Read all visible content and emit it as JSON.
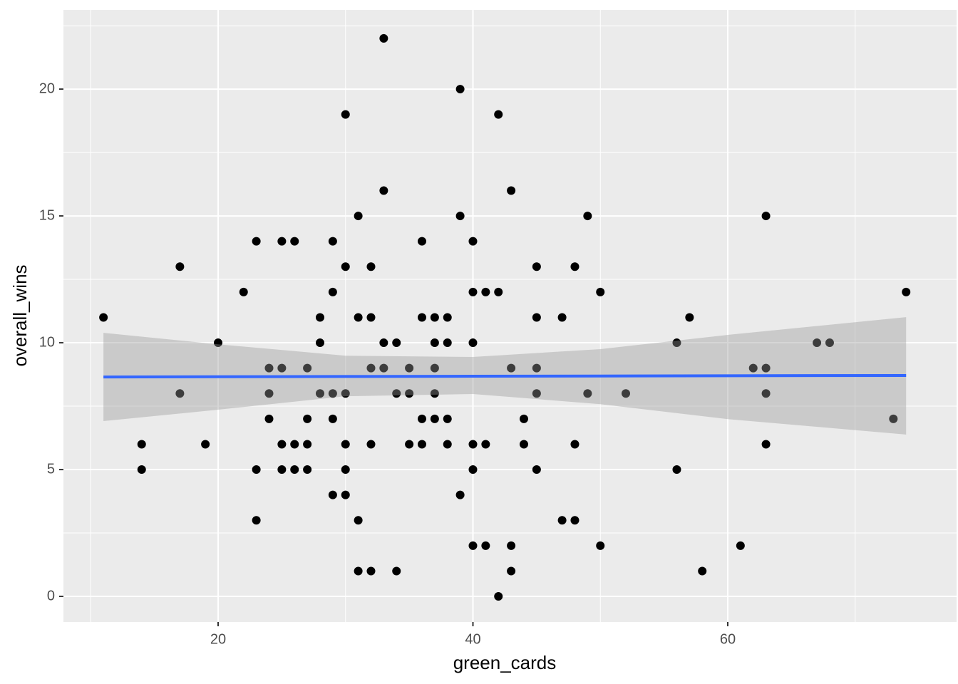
{
  "chart_data": {
    "type": "scatter",
    "x_label": "green_cards",
    "y_label": "overall_wins",
    "x": [
      11,
      14,
      14,
      17,
      17,
      19,
      20,
      22,
      23,
      23,
      23,
      24,
      24,
      24,
      25,
      25,
      25,
      25,
      26,
      26,
      26,
      27,
      27,
      27,
      27,
      28,
      28,
      28,
      29,
      29,
      29,
      29,
      29,
      30,
      30,
      30,
      30,
      30,
      30,
      31,
      31,
      31,
      31,
      32,
      32,
      32,
      32,
      32,
      33,
      33,
      33,
      33,
      34,
      34,
      34,
      35,
      35,
      35,
      36,
      36,
      36,
      36,
      37,
      37,
      37,
      37,
      37,
      38,
      38,
      38,
      38,
      39,
      39,
      39,
      40,
      40,
      40,
      40,
      40,
      40,
      41,
      41,
      41,
      42,
      42,
      42,
      43,
      43,
      43,
      43,
      44,
      44,
      45,
      45,
      45,
      45,
      45,
      47,
      47,
      48,
      48,
      48,
      49,
      49,
      50,
      50,
      52,
      56,
      56,
      57,
      58,
      61,
      62,
      63,
      63,
      63,
      63,
      67,
      68,
      73,
      74
    ],
    "values": [
      11,
      6,
      5,
      13,
      8,
      6,
      10,
      12,
      14,
      5,
      3,
      9,
      8,
      7,
      14,
      9,
      6,
      5,
      14,
      6,
      5,
      9,
      7,
      6,
      5,
      11,
      10,
      8,
      14,
      12,
      8,
      7,
      4,
      19,
      13,
      8,
      6,
      5,
      4,
      15,
      11,
      3,
      1,
      13,
      11,
      9,
      6,
      1,
      22,
      16,
      10,
      9,
      10,
      8,
      1,
      9,
      8,
      6,
      14,
      11,
      7,
      6,
      11,
      10,
      9,
      8,
      7,
      11,
      10,
      7,
      6,
      20,
      15,
      4,
      14,
      12,
      10,
      6,
      5,
      2,
      12,
      6,
      2,
      19,
      12,
      0,
      16,
      9,
      2,
      1,
      7,
      6,
      13,
      11,
      9,
      8,
      5,
      11,
      3,
      13,
      6,
      3,
      15,
      8,
      12,
      2,
      8,
      10,
      5,
      11,
      1,
      2,
      9,
      15,
      9,
      8,
      6,
      10,
      10,
      7,
      12
    ],
    "color": "#000000",
    "fit": {
      "color": "#3366ff",
      "band_color": "#999999",
      "x": [
        11,
        20,
        30,
        40,
        50,
        60,
        74
      ],
      "values": [
        8.65,
        8.66,
        8.67,
        8.68,
        8.69,
        8.7,
        8.71
      ],
      "lower": [
        6.91,
        7.36,
        7.89,
        7.98,
        7.58,
        6.99,
        6.38
      ],
      "upper": [
        10.39,
        9.94,
        9.49,
        9.44,
        9.75,
        10.31,
        11.01
      ]
    },
    "xlim": [
      7.86,
      77.96
    ],
    "xticks": [
      20,
      40,
      60
    ],
    "xminor": [
      10,
      30,
      50,
      70
    ],
    "ylim": [
      -1.01,
      23.12
    ],
    "yticks": [
      0,
      5,
      10,
      15,
      20
    ],
    "yminor": [
      2.5,
      7.5,
      12.5,
      17.5,
      22.5
    ],
    "grid": true
  }
}
